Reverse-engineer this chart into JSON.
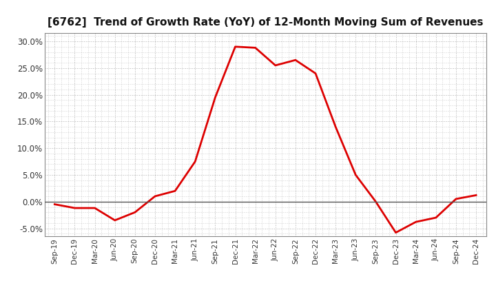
{
  "title": "[6762]  Trend of Growth Rate (YoY) of 12-Month Moving Sum of Revenues",
  "line_color": "#dd0000",
  "background_color": "#ffffff",
  "grid_color": "#b0b0b0",
  "ylim": [
    -0.065,
    0.315
  ],
  "yticks": [
    -0.05,
    0.0,
    0.05,
    0.1,
    0.15,
    0.2,
    0.25,
    0.3
  ],
  "x_labels": [
    "Sep-19",
    "Dec-19",
    "Mar-20",
    "Jun-20",
    "Sep-20",
    "Dec-20",
    "Mar-21",
    "Jun-21",
    "Sep-21",
    "Dec-21",
    "Mar-22",
    "Jun-22",
    "Sep-22",
    "Dec-22",
    "Mar-23",
    "Jun-23",
    "Sep-23",
    "Dec-23",
    "Mar-24",
    "Jun-24",
    "Sep-24",
    "Dec-24"
  ],
  "y_values": [
    -0.005,
    -0.012,
    -0.012,
    -0.035,
    -0.02,
    0.01,
    0.02,
    0.075,
    0.195,
    0.29,
    0.288,
    0.255,
    0.265,
    0.24,
    0.14,
    0.05,
    0.0,
    -0.058,
    -0.038,
    -0.03,
    0.005,
    0.012
  ]
}
